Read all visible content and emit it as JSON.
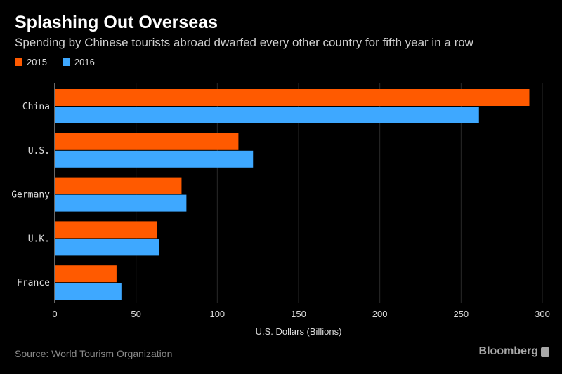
{
  "header": {
    "title": "Splashing Out Overseas",
    "subtitle": "Spending by Chinese tourists abroad dwarfed every other country for fifth year in a row"
  },
  "legend": [
    {
      "label": "2015",
      "color": "#ff5a00"
    },
    {
      "label": "2016",
      "color": "#3ea8ff"
    }
  ],
  "chart_data": {
    "type": "bar",
    "orientation": "horizontal",
    "categories": [
      "China",
      "U.S.",
      "Germany",
      "U.K.",
      "France"
    ],
    "series": [
      {
        "name": "2015",
        "values": [
          292,
          113,
          78,
          63,
          38
        ],
        "color": "#ff5a00"
      },
      {
        "name": "2016",
        "values": [
          261,
          122,
          81,
          64,
          41
        ],
        "color": "#3ea8ff"
      }
    ],
    "xlabel": "U.S. Dollars (Billions)",
    "xlim": [
      0,
      300
    ],
    "xticks": [
      0,
      50,
      100,
      150,
      200,
      250,
      300
    ],
    "grid": true
  },
  "footer": {
    "source": "Source: World Tourism Organization",
    "brand": "Bloomberg"
  }
}
